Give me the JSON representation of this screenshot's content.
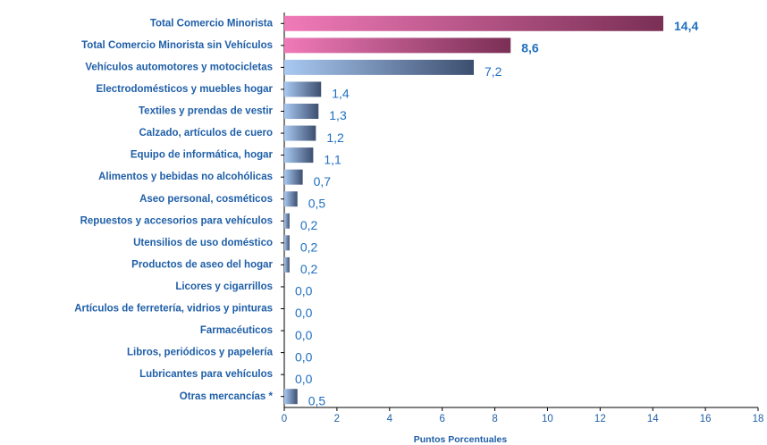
{
  "chart_data": {
    "type": "barh",
    "categories": [
      "Total Comercio Minorista",
      "Total Comercio Minorista sin Vehículos",
      "Vehículos automotores y motocicletas",
      "Electrodomésticos y muebles hogar",
      "Textiles y prendas de vestir",
      "Calzado, artículos de cuero",
      "Equipo de informática, hogar",
      "Alimentos y bebidas no alcohólicas",
      "Aseo personal, cosméticos",
      "Repuestos y accesorios para vehículos",
      "Utensilios de uso doméstico",
      "Productos de aseo del  hogar",
      "Licores y cigarrillos",
      "Artículos de ferretería, vidrios y pinturas",
      "Farmacéuticos",
      "Libros, periódicos y papelería",
      "Lubricantes para vehículos",
      "Otras mercancías  *"
    ],
    "values": [
      14.4,
      8.6,
      7.2,
      1.4,
      1.3,
      1.2,
      1.1,
      0.7,
      0.5,
      0.2,
      0.2,
      0.2,
      0.0,
      0.0,
      0.0,
      0.0,
      0.0,
      0.5
    ],
    "value_labels": [
      "14,4",
      "8,6",
      "7,2",
      "1,4",
      "1,3",
      "1,2",
      "1,1",
      "0,7",
      "0,5",
      "0,2",
      "0,2",
      "0,2",
      "0,0",
      "0,0",
      "0,0",
      "0,0",
      "0,0",
      "0,5"
    ],
    "colors": [
      "#7a2f55",
      "#7a2f55",
      "#3d4f70",
      "#3d4f70",
      "#3d4f70",
      "#3d4f70",
      "#3d4f70",
      "#3d4f70",
      "#3d4f70",
      "#3d4f70",
      "#3d4f70",
      "#3d4f70",
      "#3d4f70",
      "#3d4f70",
      "#3d4f70",
      "#3d4f70",
      "#3d4f70",
      "#3d4f70"
    ],
    "xlim": [
      0,
      18
    ],
    "xticks": [
      0,
      2,
      4,
      6,
      8,
      10,
      12,
      14,
      16,
      18
    ],
    "xlabel": "Puntos Porcentuales"
  }
}
